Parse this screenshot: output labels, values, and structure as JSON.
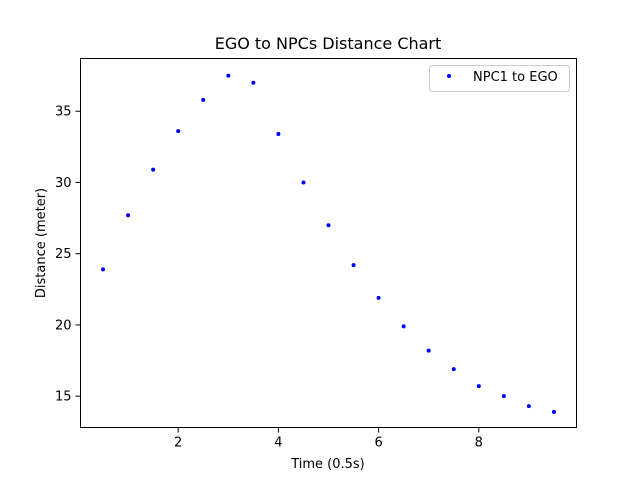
{
  "chart_data": {
    "type": "scatter",
    "title": "EGO to NPCs Distance Chart",
    "xlabel": "Time (0.5s)",
    "ylabel": "Distance (meter)",
    "xlim": [
      0.05,
      9.95
    ],
    "ylim": [
      12.8,
      38.7
    ],
    "xticks": [
      2,
      4,
      6,
      8
    ],
    "yticks": [
      15,
      20,
      25,
      30,
      35
    ],
    "grid": false,
    "legend_position": "top-right",
    "series": [
      {
        "name": "NPC1 to EGO",
        "color": "#0000ff",
        "marker": "dot",
        "x": [
          0.5,
          1.0,
          1.5,
          2.0,
          2.5,
          3.0,
          3.5,
          4.0,
          4.5,
          5.0,
          5.5,
          6.0,
          6.5,
          7.0,
          7.5,
          8.0,
          8.5,
          9.0,
          9.5
        ],
        "y": [
          23.9,
          27.7,
          30.9,
          33.6,
          35.8,
          37.5,
          37.0,
          33.4,
          30.0,
          27.0,
          24.2,
          21.9,
          19.9,
          18.2,
          16.9,
          15.7,
          15.0,
          14.3,
          13.9
        ]
      }
    ]
  }
}
